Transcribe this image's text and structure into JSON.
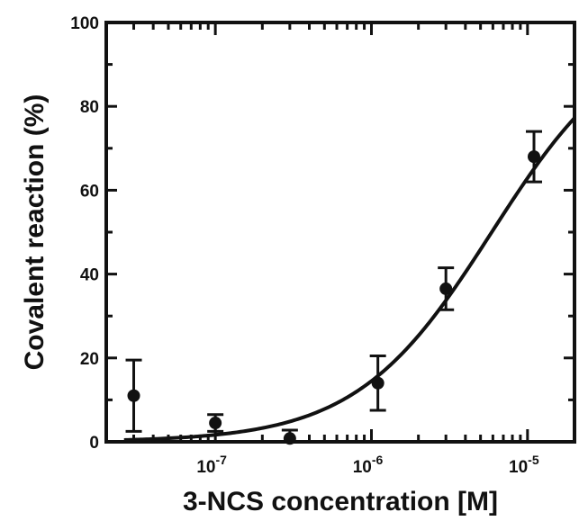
{
  "chart_data": {
    "type": "scatter",
    "title": "",
    "xlabel": "3-NCS concentration [M]",
    "ylabel": "Covalent reaction (%)",
    "xscale": "log",
    "xlim": [
      2e-08,
      2e-05
    ],
    "ylim": [
      0,
      100
    ],
    "grid": false,
    "legend": "none",
    "x_ticks": [
      {
        "value": 1e-07,
        "base": "10",
        "exp": "-7"
      },
      {
        "value": 1e-06,
        "base": "10",
        "exp": "-6"
      },
      {
        "value": 1e-05,
        "base": "10",
        "exp": "-5"
      }
    ],
    "y_ticks": [
      {
        "value": 0,
        "label": "0"
      },
      {
        "value": 20,
        "label": "20"
      },
      {
        "value": 40,
        "label": "40"
      },
      {
        "value": 60,
        "label": "60"
      },
      {
        "value": 80,
        "label": "80"
      },
      {
        "value": 100,
        "label": "100"
      }
    ],
    "points": [
      {
        "x": 3e-08,
        "y": 11,
        "err": 8.5
      },
      {
        "x": 1e-07,
        "y": 4.5,
        "err": 2
      },
      {
        "x": 3e-07,
        "y": 0.8,
        "err": 2
      },
      {
        "x": 1.1e-06,
        "y": 14,
        "err": 6.5
      },
      {
        "x": 3e-06,
        "y": 36.5,
        "err": 5
      },
      {
        "x": 1.1e-05,
        "y": 68,
        "err": 6
      }
    ],
    "fit_curve": {
      "type": "dose-response",
      "top": 100,
      "ec50": 5.9e-06,
      "hill": 1
    },
    "colors": {
      "marker": "#111111",
      "line": "#111111",
      "axes": "#111111"
    }
  }
}
